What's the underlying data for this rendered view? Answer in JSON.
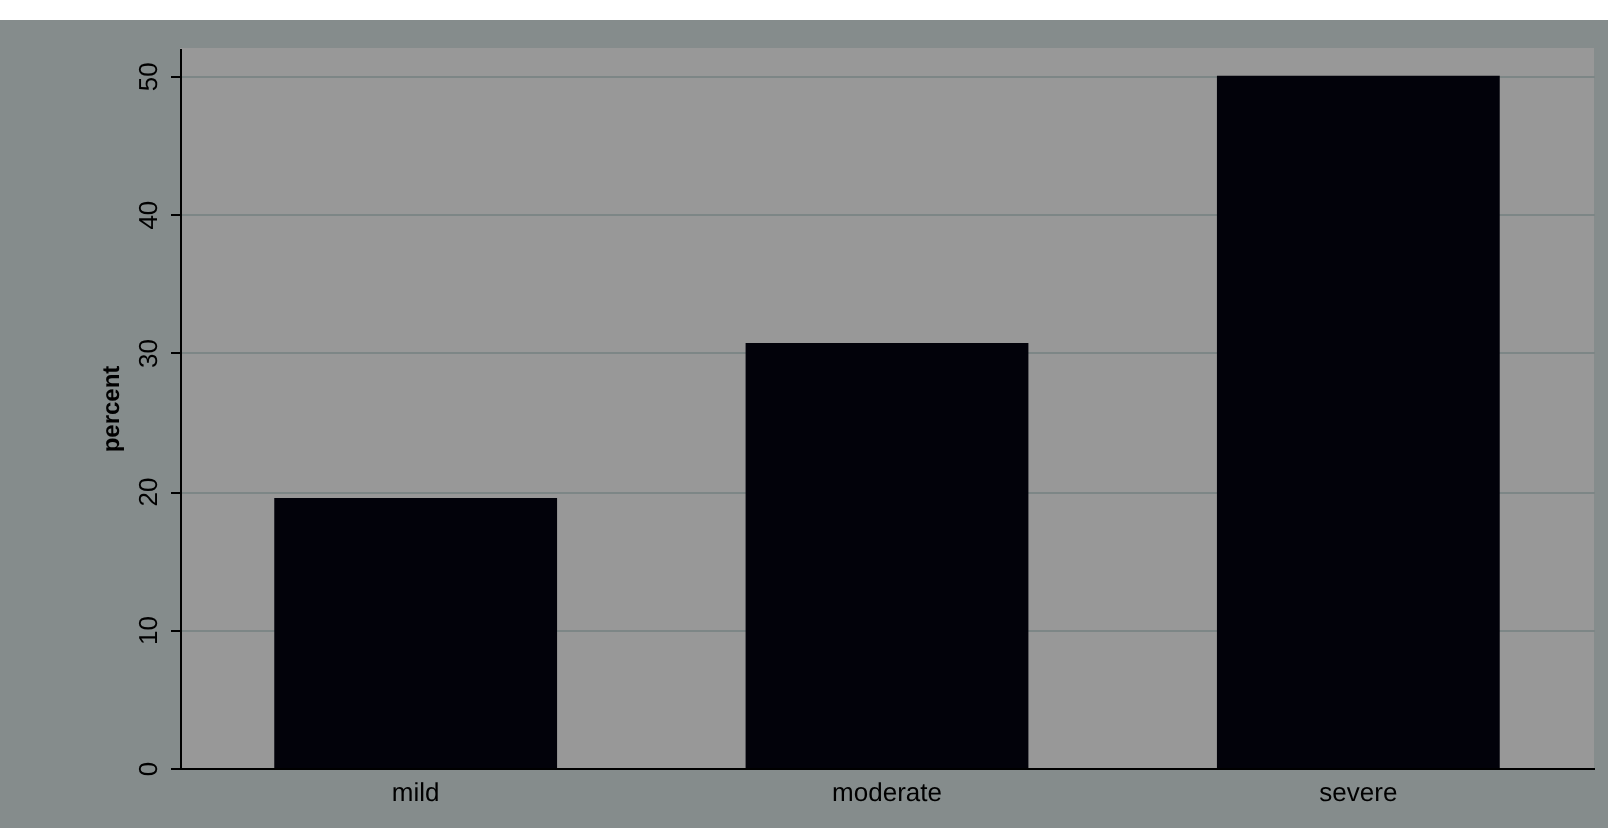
{
  "chart_data": {
    "type": "bar",
    "ylabel": "percent",
    "categories": [
      "mild",
      "moderate",
      "severe"
    ],
    "values": [
      19.5,
      30.7,
      50
    ],
    "color": "#02020a",
    "ylim": [
      0,
      52
    ],
    "yticks": [
      0,
      10,
      20,
      30,
      40,
      50
    ],
    "grid": "y"
  }
}
